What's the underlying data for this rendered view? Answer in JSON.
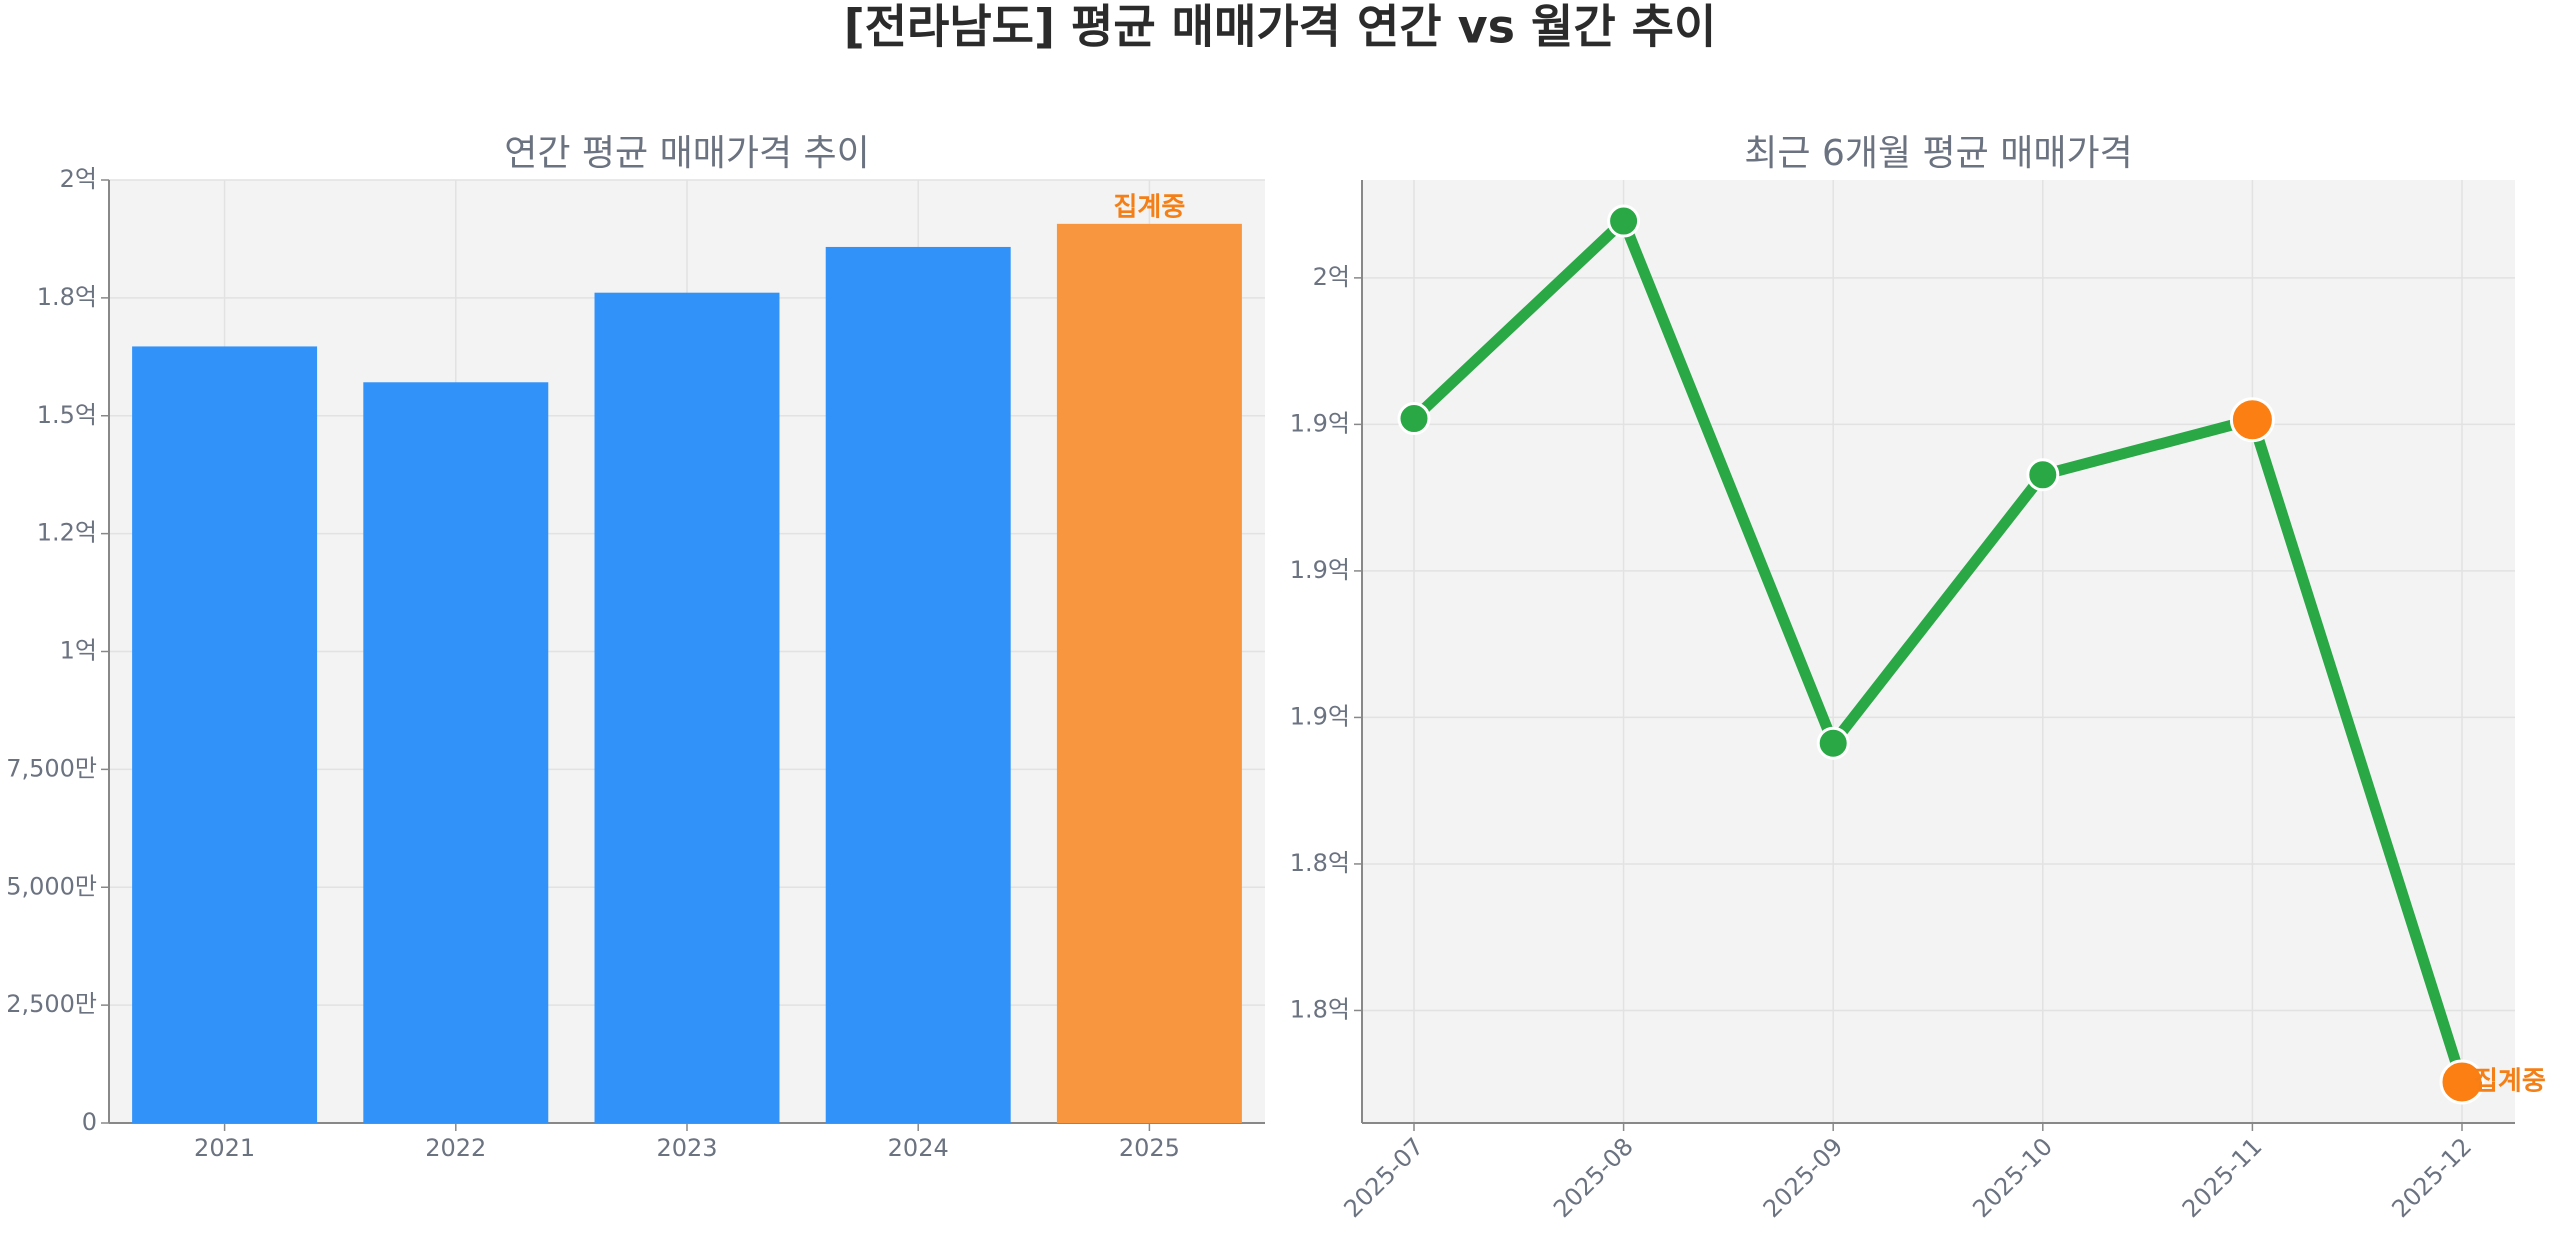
{
  "title": "[전라남도] 평균 매매가격 연간 vs 월간 추이",
  "chart_data": [
    {
      "type": "bar",
      "title": "연간 평균 매매가격 추이",
      "categories": [
        "2021",
        "2022",
        "2023",
        "2024",
        "2025"
      ],
      "values": [
        164700000,
        157100000,
        176100000,
        185800000,
        190700000
      ],
      "colors": [
        "#3192f9",
        "#3192f9",
        "#3192f9",
        "#3192f9",
        "#f7963f"
      ],
      "ylim": [
        0,
        200000000
      ],
      "yticks": [
        0,
        {
          "value": 25000000,
          "label": "2,500만"
        },
        {
          "value": 50000000,
          "label": "5,000만"
        },
        {
          "value": 75000000,
          "label": "7,500만"
        },
        {
          "value": 100000000,
          "label": "1억"
        },
        {
          "value": 125000000,
          "label": "1.2억"
        },
        {
          "value": 150000000,
          "label": "1.5억"
        },
        {
          "value": 175000000,
          "label": "1.8억"
        },
        {
          "value": 200000000,
          "label": "2억"
        }
      ],
      "grid": true,
      "annotation": {
        "index": 4,
        "text": "집계중",
        "color": "#f57f17"
      }
    },
    {
      "type": "line",
      "title": "최근 6개월 평균 매매가격",
      "categories": [
        "2025-07",
        "2025-08",
        "2025-09",
        "2025-10",
        "2025-11",
        "2025-12"
      ],
      "values": [
        192600000,
        195970000,
        187060000,
        191640000,
        192580000,
        181280000
      ],
      "color": "#2aa846",
      "highlight": {
        "indices": [
          4,
          5
        ],
        "color": "#fb7f12"
      },
      "ylim": [
        180580000,
        196670000
      ],
      "yticks": [
        {
          "value": 182500000,
          "label": "1.8억"
        },
        {
          "value": 185000000,
          "label": "1.8억"
        },
        {
          "value": 187500000,
          "label": "1.9억"
        },
        {
          "value": 190000000,
          "label": "1.9억"
        },
        {
          "value": 192500000,
          "label": "1.9억"
        },
        {
          "value": 195000000,
          "label": "2억"
        }
      ],
      "grid": true,
      "annotation": {
        "index": 5,
        "text": "집계중",
        "color": "#f57f17"
      }
    }
  ]
}
